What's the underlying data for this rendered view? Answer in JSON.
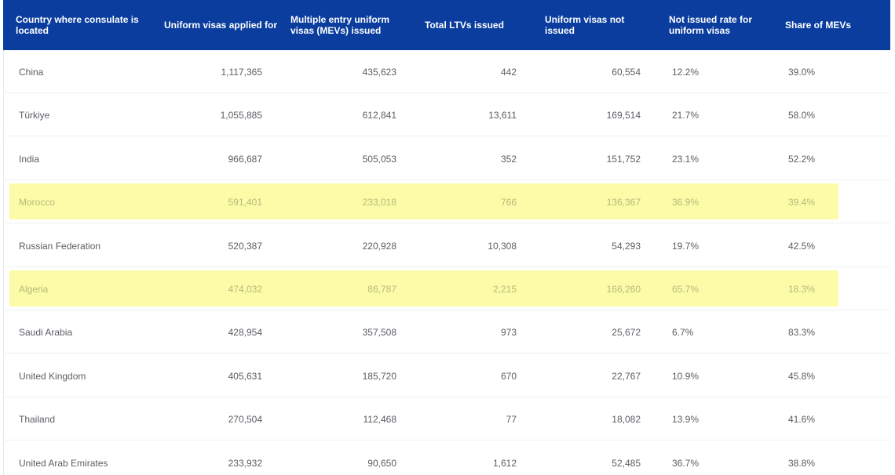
{
  "chart_data": {
    "type": "table",
    "columns": [
      "Country where consulate is located",
      "Uniform visas applied for",
      "Multiple entry uniform visas (MEVs) issued",
      "Total LTVs issued",
      "Uniform visas not issued",
      "Not issued rate for uniform visas",
      "Share of MEVs"
    ],
    "rows": [
      {
        "country": "China",
        "applied": "1,117,365",
        "mevs": "435,623",
        "ltvs": "442",
        "not_issued": "60,554",
        "not_issued_rate": "12.2%",
        "share_mevs": "39.0%",
        "highlight": false
      },
      {
        "country": "Türkiye",
        "applied": "1,055,885",
        "mevs": "612,841",
        "ltvs": "13,611",
        "not_issued": "169,514",
        "not_issued_rate": "21.7%",
        "share_mevs": "58.0%",
        "highlight": false
      },
      {
        "country": "India",
        "applied": "966,687",
        "mevs": "505,053",
        "ltvs": "352",
        "not_issued": "151,752",
        "not_issued_rate": "23.1%",
        "share_mevs": "52.2%",
        "highlight": false
      },
      {
        "country": "Morocco",
        "applied": "591,401",
        "mevs": "233,018",
        "ltvs": "766",
        "not_issued": "136,367",
        "not_issued_rate": "36.9%",
        "share_mevs": "39.4%",
        "highlight": true
      },
      {
        "country": "Russian Federation",
        "applied": "520,387",
        "mevs": "220,928",
        "ltvs": "10,308",
        "not_issued": "54,293",
        "not_issued_rate": "19.7%",
        "share_mevs": "42.5%",
        "highlight": false
      },
      {
        "country": "Algeria",
        "applied": "474,032",
        "mevs": "86,787",
        "ltvs": "2,215",
        "not_issued": "166,260",
        "not_issued_rate": "65.7%",
        "share_mevs": "18.3%",
        "highlight": true
      },
      {
        "country": "Saudi Arabia",
        "applied": "428,954",
        "mevs": "357,508",
        "ltvs": "973",
        "not_issued": "25,672",
        "not_issued_rate": "6.7%",
        "share_mevs": "83.3%",
        "highlight": false
      },
      {
        "country": "United Kingdom",
        "applied": "405,631",
        "mevs": "185,720",
        "ltvs": "670",
        "not_issued": "22,767",
        "not_issued_rate": "10.9%",
        "share_mevs": "45.8%",
        "highlight": false
      },
      {
        "country": "Thailand",
        "applied": "270,504",
        "mevs": "112,468",
        "ltvs": "77",
        "not_issued": "18,082",
        "not_issued_rate": "13.9%",
        "share_mevs": "41.6%",
        "highlight": false
      },
      {
        "country": "United Arab Emirates",
        "applied": "233,932",
        "mevs": "90,650",
        "ltvs": "1,612",
        "not_issued": "52,485",
        "not_issued_rate": "36.7%",
        "share_mevs": "38.8%",
        "highlight": false
      }
    ]
  },
  "colors": {
    "header_bg": "#0a3d9e",
    "header_text": "#ffffff",
    "highlight_bg": "#fbfba8",
    "body_text": "#5a5d63"
  }
}
